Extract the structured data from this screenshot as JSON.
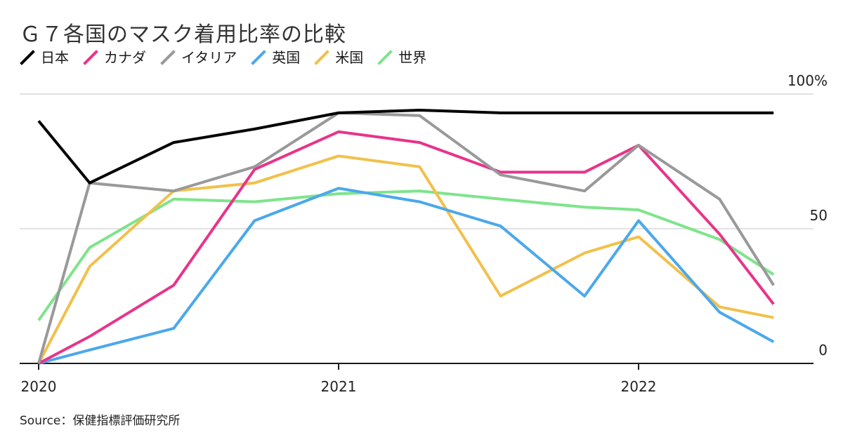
{
  "title": "Ｇ７各国のマスク着用比率の比較",
  "source": "Source：保健指標評価研究所",
  "legend": [
    {
      "name": "日本",
      "color": "#000000"
    },
    {
      "name": "カナダ",
      "color": "#e8348a"
    },
    {
      "name": "イタリア",
      "color": "#999999"
    },
    {
      "name": "英国",
      "color": "#4ba8ec"
    },
    {
      "name": "米国",
      "color": "#f2c04a"
    },
    {
      "name": "世界",
      "color": "#7ee48c"
    }
  ],
  "chart_data": {
    "type": "line",
    "title": "Ｇ７各国のマスク着用比率の比較",
    "xlabel": "",
    "ylabel": "",
    "xlim": [
      2020.0,
      2022.6
    ],
    "ylim": [
      0,
      100
    ],
    "x_ticks": [
      {
        "value": 2020,
        "label": "2020"
      },
      {
        "value": 2021,
        "label": "2021"
      },
      {
        "value": 2022,
        "label": "2022"
      }
    ],
    "y_ticks": [
      {
        "value": 0,
        "label": "0"
      },
      {
        "value": 50,
        "label": "50"
      },
      {
        "value": 100,
        "label": "100%"
      }
    ],
    "grid": "horizontal",
    "y_axis_position": "right",
    "legend_position": "top-left",
    "x": [
      2020.0,
      2020.17,
      2020.45,
      2020.72,
      2021.0,
      2021.27,
      2021.54,
      2021.82,
      2022.0,
      2022.27,
      2022.45
    ],
    "series": [
      {
        "name": "日本",
        "color": "#000000",
        "values": [
          90,
          67,
          82,
          87,
          93,
          94,
          93,
          93,
          93,
          93,
          93
        ]
      },
      {
        "name": "カナダ",
        "color": "#e8348a",
        "values": [
          0,
          10,
          29,
          72,
          86,
          82,
          71,
          71,
          81,
          48,
          22
        ]
      },
      {
        "name": "イタリア",
        "color": "#999999",
        "values": [
          0,
          67,
          64,
          73,
          93,
          92,
          70,
          64,
          81,
          61,
          29
        ]
      },
      {
        "name": "英国",
        "color": "#4ba8ec",
        "values": [
          0,
          5,
          13,
          53,
          65,
          60,
          51,
          25,
          53,
          19,
          8
        ]
      },
      {
        "name": "米国",
        "color": "#f2c04a",
        "values": [
          0,
          36,
          64,
          67,
          77,
          73,
          25,
          41,
          47,
          21,
          17
        ]
      },
      {
        "name": "世界",
        "color": "#7ee48c",
        "values": [
          16,
          43,
          61,
          60,
          63,
          64,
          61,
          58,
          57,
          46,
          33
        ]
      }
    ]
  }
}
